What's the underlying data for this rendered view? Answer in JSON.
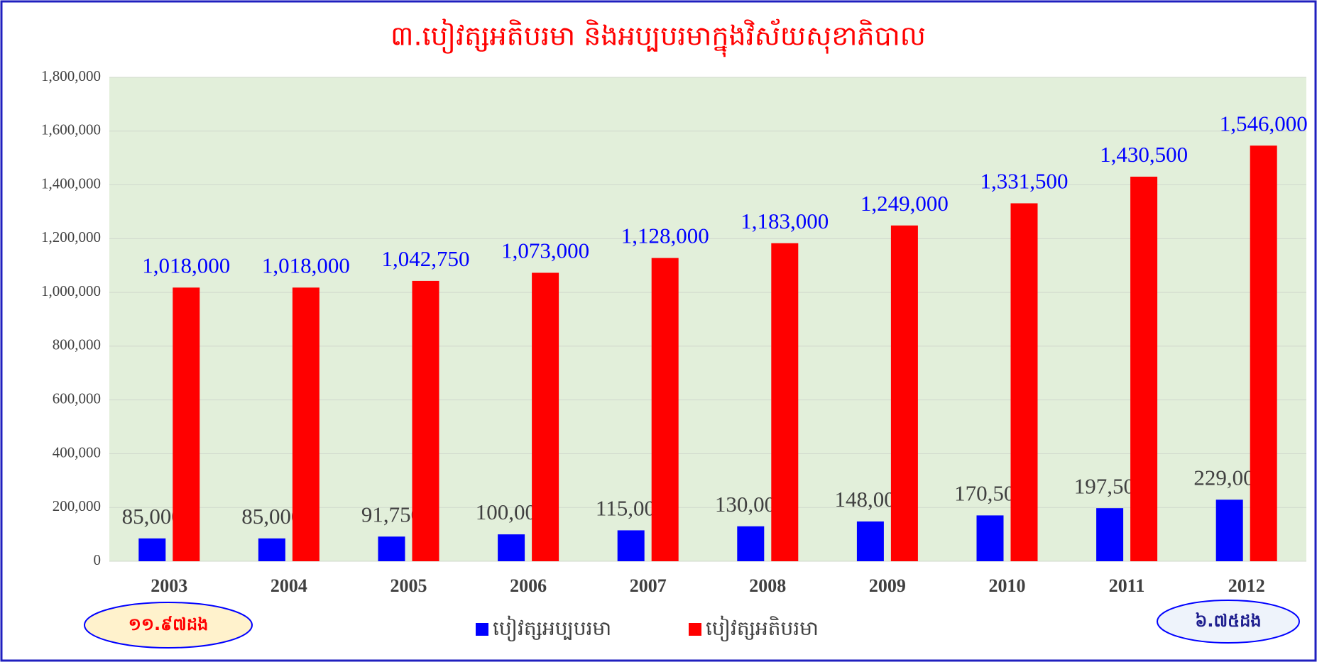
{
  "chart_data": {
    "type": "bar",
    "title": "៣.បៀវត្សអតិបរមា និងអប្បបរមាក្នុងវិស័យសុខាភិបាល",
    "categories": [
      "2003",
      "2004",
      "2005",
      "2006",
      "2007",
      "2008",
      "2009",
      "2010",
      "2011",
      "2012"
    ],
    "series": [
      {
        "name": "បៀវត្សអប្បបរមា",
        "color": "#0000ff",
        "label_color": "#404040",
        "values": [
          85000,
          85000,
          91750,
          100000,
          115000,
          130000,
          148000,
          170500,
          197500,
          229000
        ],
        "value_labels": [
          "85,000",
          "85,000",
          "91,750",
          "100,000",
          "115,000",
          "130,000",
          "148,000",
          "170,500",
          "197,500",
          "229,000"
        ]
      },
      {
        "name": "បៀវត្សអតិបរមា",
        "color": "#ff0000",
        "label_color": "#0000ff",
        "values": [
          1018000,
          1018000,
          1042750,
          1073000,
          1128000,
          1183000,
          1249000,
          1331500,
          1430500,
          1546000
        ],
        "value_labels": [
          "1,018,000",
          "1,018,000",
          "1,042,750",
          "1,073,000",
          "1,128,000",
          "1,183,000",
          "1,249,000",
          "1,331,500",
          "1,430,500",
          "1,546,000"
        ]
      }
    ],
    "ylim": [
      0,
      1800000
    ],
    "yticks": [
      0,
      {
        "value": 200000,
        "label": "200,000"
      },
      {
        "value": 400000,
        "label": "400,000"
      },
      {
        "value": 600000,
        "label": "600,000"
      },
      {
        "value": 800000,
        "label": "800,000"
      },
      {
        "value": 1000000,
        "label": "1,000,000"
      },
      {
        "value": 1200000,
        "label": "1,200,000"
      },
      {
        "value": 1400000,
        "label": "1,400,000"
      },
      {
        "value": 1600000,
        "label": "1,600,000"
      },
      {
        "value": 1800000,
        "label": "1,800,000"
      }
    ],
    "grid": true,
    "legend": "bottom",
    "annotations": [
      "១១.៩៧ដង",
      "៦.៧៥ដង"
    ]
  }
}
